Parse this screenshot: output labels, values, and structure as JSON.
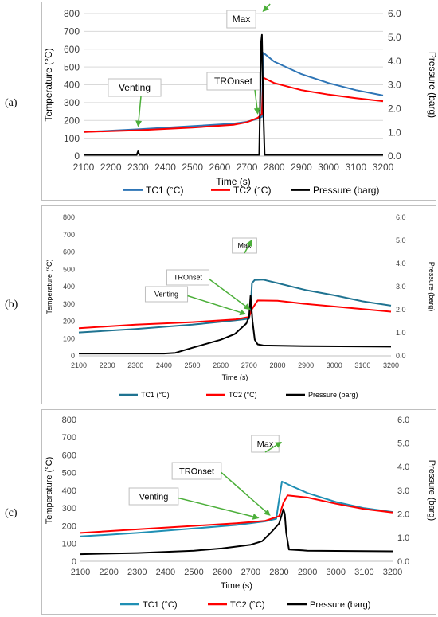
{
  "panels": [
    {
      "label": "(a)",
      "chart_data": {
        "type": "line",
        "xlabel": "Time (s)",
        "ylabel": "Temperature (°C)",
        "y2label": "Pressure (barg)",
        "xlim": [
          2100,
          3200
        ],
        "ylim": [
          0,
          800
        ],
        "y2lim": [
          0,
          6
        ],
        "xticks": [
          2100,
          2200,
          2300,
          2400,
          2500,
          2600,
          2700,
          2800,
          2900,
          3000,
          3100,
          3200
        ],
        "yticks": [
          0,
          100,
          200,
          300,
          400,
          500,
          600,
          700,
          800
        ],
        "y2ticks": [
          "0.0",
          "1.0",
          "2.0",
          "3.0",
          "4.0",
          "5.0",
          "6.0"
        ],
        "grid": true,
        "legend_position": "bottom",
        "series": [
          {
            "name": "TC1 (°C)",
            "color": "#2e75b6",
            "axis": "left",
            "x": [
              2100,
              2300,
              2500,
              2650,
              2700,
              2740,
              2755,
              2760,
              2800,
              2900,
              3000,
              3100,
              3200
            ],
            "y": [
              135,
              150,
              168,
              182,
              192,
              210,
              220,
              580,
              530,
              460,
              410,
              370,
              340
            ]
          },
          {
            "name": "TC2 (°C)",
            "color": "#ff0000",
            "axis": "left",
            "x": [
              2100,
              2300,
              2500,
              2650,
              2700,
              2740,
              2755,
              2760,
              2800,
              2900,
              3000,
              3100,
              3200
            ],
            "y": [
              135,
              145,
              160,
              175,
              190,
              215,
              235,
              440,
              410,
              370,
              345,
              325,
              308
            ]
          },
          {
            "name": "Pressure (barg)",
            "color": "#000000",
            "axis": "right",
            "x": [
              2100,
              2295,
              2300,
              2305,
              2745,
              2752,
              2755,
              2760,
              2765,
              3200
            ],
            "y": [
              0.05,
              0.05,
              0.2,
              0.05,
              0.05,
              4.8,
              5.1,
              2.0,
              0.05,
              0.05
            ]
          }
        ],
        "annotations": [
          {
            "text": "Venting",
            "x": 2300
          },
          {
            "text": "TROnset",
            "x": 2740
          },
          {
            "text": "Max",
            "x": 2757
          }
        ]
      }
    },
    {
      "label": "(b)",
      "chart_data": {
        "type": "line",
        "xlabel": "Time (s)",
        "ylabel": "Temperature (°C)",
        "y2label": "Pressure (barg)",
        "xlim": [
          2100,
          3200
        ],
        "ylim": [
          0,
          800
        ],
        "y2lim": [
          0,
          6
        ],
        "xticks": [
          2100,
          2200,
          2300,
          2400,
          2500,
          2600,
          2700,
          2800,
          2900,
          3000,
          3100,
          3200
        ],
        "yticks": [
          0,
          100,
          200,
          300,
          400,
          500,
          600,
          700,
          800
        ],
        "y2ticks": [
          "0.0",
          "1.0",
          "2.0",
          "3.0",
          "4.0",
          "5.0",
          "6.0"
        ],
        "grid": false,
        "legend_position": "bottom",
        "series": [
          {
            "name": "TC1 (°C)",
            "color": "#1f7391",
            "axis": "left",
            "x": [
              2100,
              2300,
              2500,
              2650,
              2700,
              2705,
              2710,
              2720,
              2750,
              2800,
              2900,
              3000,
              3100,
              3200
            ],
            "y": [
              135,
              155,
              180,
              205,
              215,
              260,
              420,
              438,
              440,
              420,
              380,
              350,
              315,
              290
            ]
          },
          {
            "name": "TC2 (°C)",
            "color": "#ff0000",
            "axis": "left",
            "x": [
              2100,
              2300,
              2500,
              2650,
              2700,
              2710,
              2730,
              2800,
              2900,
              3000,
              3100,
              3200
            ],
            "y": [
              160,
              180,
              195,
              210,
              225,
              270,
              320,
              318,
              300,
              285,
              270,
              255
            ]
          },
          {
            "name": "Pressure (barg)",
            "color": "#000000",
            "axis": "right",
            "x": [
              2100,
              2400,
              2440,
              2500,
              2600,
              2650,
              2690,
              2700,
              2705,
              2712,
              2720,
              2730,
              2750,
              2900,
              3200
            ],
            "y": [
              0.1,
              0.1,
              0.13,
              0.35,
              0.7,
              0.95,
              1.4,
              1.7,
              2.6,
              1.5,
              0.7,
              0.5,
              0.45,
              0.42,
              0.4
            ]
          }
        ],
        "annotations": [
          {
            "text": "Venting",
            "x": 2690
          },
          {
            "text": "TROnset",
            "x": 2705
          },
          {
            "text": "Max",
            "x": 2710
          }
        ]
      }
    },
    {
      "label": "(c)",
      "chart_data": {
        "type": "line",
        "xlabel": "Time (s)",
        "ylabel": "Temperature (°C)",
        "y2label": "Pressure (barg)",
        "xlim": [
          2100,
          3200
        ],
        "ylim": [
          0,
          800
        ],
        "y2lim": [
          0,
          6
        ],
        "xticks": [
          2100,
          2200,
          2300,
          2400,
          2500,
          2600,
          2700,
          2800,
          2900,
          3000,
          3100,
          3200
        ],
        "yticks": [
          0,
          100,
          200,
          300,
          400,
          500,
          600,
          700,
          800
        ],
        "y2ticks": [
          "0.0",
          "1.0",
          "2.0",
          "3.0",
          "4.0",
          "5.0",
          "6.0"
        ],
        "grid": false,
        "legend_position": "bottom",
        "series": [
          {
            "name": "TC1 (°C)",
            "color": "#1f8fb4",
            "axis": "left",
            "x": [
              2100,
              2300,
              2500,
              2650,
              2750,
              2790,
              2800,
              2810,
              2850,
              2900,
              3000,
              3100,
              3200
            ],
            "y": [
              140,
              160,
              185,
              205,
              225,
              240,
              350,
              450,
              420,
              385,
              335,
              300,
              278
            ]
          },
          {
            "name": "TC2 (°C)",
            "color": "#ff0000",
            "axis": "left",
            "x": [
              2100,
              2300,
              2500,
              2650,
              2750,
              2800,
              2815,
              2830,
              2900,
              3000,
              3100,
              3200
            ],
            "y": [
              160,
              180,
              200,
              215,
              228,
              255,
              330,
              372,
              360,
              325,
              295,
              275
            ]
          },
          {
            "name": "Pressure (barg)",
            "color": "#000000",
            "axis": "right",
            "x": [
              2100,
              2300,
              2500,
              2600,
              2700,
              2740,
              2770,
              2800,
              2815,
              2820,
              2825,
              2835,
              2900,
              3200
            ],
            "y": [
              0.3,
              0.35,
              0.45,
              0.55,
              0.7,
              0.85,
              1.2,
              1.6,
              2.2,
              2.0,
              1.2,
              0.5,
              0.45,
              0.42
            ]
          }
        ],
        "annotations": [
          {
            "text": "Venting",
            "x": 2730
          },
          {
            "text": "TROnset",
            "x": 2770
          },
          {
            "text": "Max",
            "x": 2810
          }
        ]
      }
    }
  ]
}
